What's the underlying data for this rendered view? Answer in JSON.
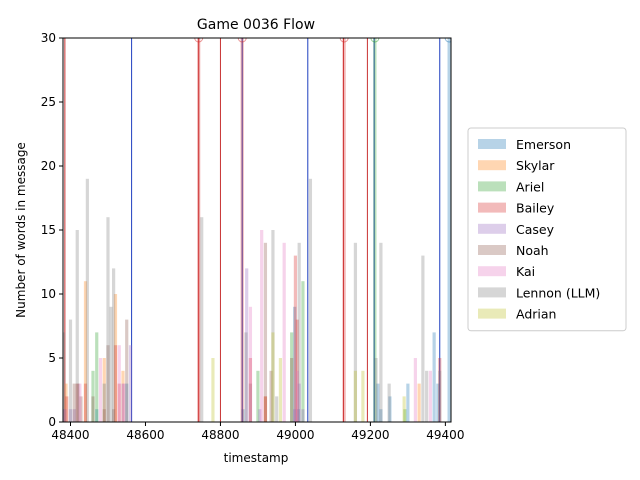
{
  "chart_data": {
    "type": "bar",
    "title": "Game 0036 Flow",
    "xlabel": "timestamp",
    "ylabel": "Number of words in message",
    "xlim": [
      48380,
      49415
    ],
    "ylim": [
      0,
      30
    ],
    "x_ticks": [
      48400,
      48600,
      48800,
      49000,
      49200,
      49400
    ],
    "y_ticks": [
      0,
      5,
      10,
      15,
      20,
      25,
      30
    ],
    "grid": false,
    "legend_position": "right",
    "series": [
      {
        "name": "Emerson",
        "color": "#1f77b4",
        "points": [
          [
            48368,
            1
          ],
          [
            48470,
            1
          ],
          [
            48490,
            3
          ],
          [
            48550,
            3
          ],
          [
            48860,
            1
          ],
          [
            48998,
            9
          ],
          [
            49008,
            1
          ],
          [
            49220,
            3
          ],
          [
            49228,
            1
          ],
          [
            49252,
            2
          ],
          [
            49300,
            3
          ],
          [
            49370,
            7
          ],
          [
            49380,
            3
          ],
          [
            49410,
            30
          ]
        ]
      },
      {
        "name": "Skylar",
        "color": "#ff7f0e",
        "points": [
          [
            48388,
            3
          ],
          [
            48440,
            11
          ],
          [
            48490,
            5
          ],
          [
            48520,
            10
          ],
          [
            48540,
            4
          ],
          [
            48920,
            2
          ],
          [
            49330,
            3
          ]
        ]
      },
      {
        "name": "Ariel",
        "color": "#2ca02c",
        "points": [
          [
            48460,
            4
          ],
          [
            48470,
            7
          ],
          [
            48900,
            4
          ],
          [
            48990,
            7
          ],
          [
            49020,
            11
          ],
          [
            49212,
            30
          ],
          [
            49292,
            1
          ]
        ]
      },
      {
        "name": "Bailey",
        "color": "#d62728",
        "points": [
          [
            48390,
            2
          ],
          [
            48418,
            3
          ],
          [
            48440,
            3
          ],
          [
            48520,
            6
          ],
          [
            48530,
            3
          ],
          [
            48742,
            30
          ],
          [
            48858,
            30
          ],
          [
            48880,
            5
          ],
          [
            48920,
            2
          ],
          [
            49000,
            13
          ],
          [
            49005,
            8
          ],
          [
            49130,
            30
          ],
          [
            49385,
            5
          ]
        ]
      },
      {
        "name": "Casey",
        "color": "#9467bd",
        "points": [
          [
            48385,
            1
          ],
          [
            48400,
            1
          ],
          [
            48410,
            1
          ],
          [
            48540,
            3
          ],
          [
            48560,
            6
          ],
          [
            48870,
            12
          ],
          [
            48905,
            1
          ],
          [
            48998,
            1
          ],
          [
            49010,
            3
          ],
          [
            49020,
            1
          ]
        ]
      },
      {
        "name": "Noah",
        "color": "#8c564b",
        "points": [
          [
            48410,
            3
          ],
          [
            48420,
            3
          ],
          [
            48428,
            2
          ],
          [
            48460,
            2
          ],
          [
            48490,
            1
          ],
          [
            48500,
            6
          ],
          [
            48515,
            1
          ],
          [
            48550,
            8
          ],
          [
            48880,
            3
          ],
          [
            48920,
            14
          ],
          [
            48935,
            4
          ],
          [
            48990,
            5
          ]
        ]
      },
      {
        "name": "Kai",
        "color": "#e377c2",
        "points": [
          [
            48380,
            1
          ],
          [
            48425,
            3
          ],
          [
            48480,
            5
          ],
          [
            48530,
            6
          ],
          [
            48542,
            3
          ],
          [
            48880,
            9
          ],
          [
            48910,
            15
          ],
          [
            48970,
            14
          ],
          [
            49005,
            4
          ],
          [
            49320,
            5
          ],
          [
            49360,
            4
          ]
        ]
      },
      {
        "name": "Lennon (LLM)",
        "color": "#7f7f7f",
        "points": [
          [
            48382,
            7
          ],
          [
            48400,
            8
          ],
          [
            48418,
            15
          ],
          [
            48445,
            19
          ],
          [
            48500,
            16
          ],
          [
            48508,
            9
          ],
          [
            48515,
            12
          ],
          [
            48750,
            16
          ],
          [
            48868,
            7
          ],
          [
            48940,
            15
          ],
          [
            48950,
            2
          ],
          [
            49010,
            14
          ],
          [
            49040,
            19
          ],
          [
            49160,
            14
          ],
          [
            49215,
            5
          ],
          [
            49228,
            14
          ],
          [
            49250,
            3
          ],
          [
            49340,
            13
          ],
          [
            49350,
            4
          ],
          [
            49385,
            4
          ]
        ]
      },
      {
        "name": "Adrian",
        "color": "#bcbd22",
        "points": [
          [
            48780,
            5
          ],
          [
            48940,
            7
          ],
          [
            48960,
            5
          ],
          [
            49160,
            4
          ],
          [
            49180,
            4
          ],
          [
            49290,
            2
          ]
        ]
      }
    ],
    "vlines": [
      {
        "x": 48372,
        "color": "#1f3fbf"
      },
      {
        "x": 48385,
        "color": "#c83232"
      },
      {
        "x": 48563,
        "color": "#1f3fbf"
      },
      {
        "x": 48742,
        "color": "#c83232"
      },
      {
        "x": 48800,
        "color": "#c83232"
      },
      {
        "x": 48858,
        "color": "#1f3fbf"
      },
      {
        "x": 49033,
        "color": "#1f3fbf"
      },
      {
        "x": 49128,
        "color": "#c83232"
      },
      {
        "x": 49192,
        "color": "#c83232"
      },
      {
        "x": 49210,
        "color": "#1f3fbf"
      },
      {
        "x": 49385,
        "color": "#1f3fbf"
      }
    ]
  }
}
